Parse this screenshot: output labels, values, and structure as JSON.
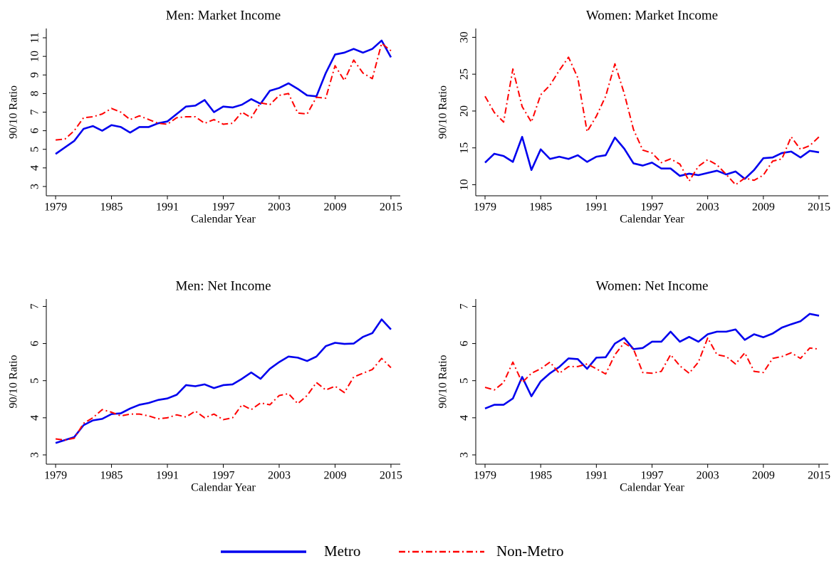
{
  "chart_data": [
    {
      "type": "line",
      "title": "Men: Market Income",
      "x_label": "Calendar Year",
      "y_label": "90/10 Ratio",
      "x": [
        1979,
        1980,
        1981,
        1982,
        1983,
        1984,
        1985,
        1986,
        1987,
        1988,
        1989,
        1990,
        1991,
        1992,
        1993,
        1994,
        1995,
        1996,
        1997,
        1998,
        1999,
        2000,
        2001,
        2002,
        2003,
        2004,
        2005,
        2006,
        2007,
        2008,
        2009,
        2010,
        2011,
        2012,
        2013,
        2014,
        2015
      ],
      "xlim": [
        1978,
        2016
      ],
      "xticks": [
        1979,
        1985,
        1991,
        1997,
        2003,
        2009,
        2015
      ],
      "ylim": [
        2.5,
        11.5
      ],
      "yticks": [
        3,
        4,
        5,
        6,
        7,
        8,
        9,
        10,
        11
      ],
      "series": [
        {
          "name": "Metro",
          "color": "#0000ee",
          "line_style": "solid",
          "values": [
            4.75,
            5.1,
            5.45,
            6.1,
            6.25,
            6.0,
            6.3,
            6.2,
            5.9,
            6.2,
            6.2,
            6.4,
            6.5,
            6.9,
            7.3,
            7.35,
            7.65,
            7.0,
            7.3,
            7.25,
            7.4,
            7.7,
            7.45,
            8.15,
            8.3,
            8.55,
            8.25,
            7.9,
            7.85,
            9.1,
            10.1,
            10.2,
            10.4,
            10.2,
            10.4,
            10.85,
            9.95
          ]
        },
        {
          "name": "Non-Metro",
          "color": "#ff0000",
          "line_style": "dash-dot",
          "values": [
            5.5,
            5.55,
            6.0,
            6.7,
            6.75,
            6.9,
            7.2,
            7.0,
            6.6,
            6.8,
            6.6,
            6.4,
            6.35,
            6.7,
            6.75,
            6.75,
            6.4,
            6.6,
            6.35,
            6.4,
            7.0,
            6.7,
            7.5,
            7.4,
            7.9,
            8.0,
            6.95,
            6.9,
            7.8,
            7.75,
            9.5,
            8.7,
            9.8,
            9.1,
            8.8,
            10.7,
            10.3
          ]
        }
      ]
    },
    {
      "type": "line",
      "title": "Women: Market Income",
      "x_label": "Calendar Year",
      "y_label": "90/10 Ratio",
      "x": [
        1979,
        1980,
        1981,
        1982,
        1983,
        1984,
        1985,
        1986,
        1987,
        1988,
        1989,
        1990,
        1991,
        1992,
        1993,
        1994,
        1995,
        1996,
        1997,
        1998,
        1999,
        2000,
        2001,
        2002,
        2003,
        2004,
        2005,
        2006,
        2007,
        2008,
        2009,
        2010,
        2011,
        2012,
        2013,
        2014,
        2015
      ],
      "xlim": [
        1978,
        2016
      ],
      "xticks": [
        1979,
        1985,
        1991,
        1997,
        2003,
        2009,
        2015
      ],
      "ylim": [
        8.5,
        31.2
      ],
      "yticks": [
        10,
        15,
        20,
        25,
        30
      ],
      "series": [
        {
          "color": "#0000ee",
          "line_style": "solid",
          "values": [
            13.0,
            14.2,
            13.9,
            13.1,
            16.5,
            12.0,
            14.8,
            13.5,
            13.8,
            13.5,
            14.0,
            13.1,
            13.8,
            14.0,
            16.4,
            14.9,
            12.9,
            12.6,
            13.0,
            12.2,
            12.2,
            11.2,
            11.5,
            11.3,
            11.6,
            11.9,
            11.4,
            11.8,
            10.8,
            12.0,
            13.6,
            13.7,
            14.3,
            14.5,
            13.7,
            14.6,
            14.4
          ]
        },
        {
          "color": "#ff0000",
          "line_style": "dash-dot",
          "values": [
            22.0,
            19.8,
            18.5,
            25.7,
            20.6,
            18.5,
            22.2,
            23.5,
            25.5,
            27.3,
            24.5,
            17.2,
            19.3,
            22.0,
            26.4,
            22.4,
            17.5,
            14.7,
            14.3,
            13.0,
            13.5,
            12.8,
            10.5,
            12.5,
            13.4,
            12.7,
            11.4,
            10.0,
            10.9,
            10.6,
            11.3,
            13.2,
            13.5,
            16.5,
            14.8,
            15.3,
            16.5
          ]
        }
      ]
    },
    {
      "type": "line",
      "title": "Men: Net Income",
      "x_label": "Calendar Year",
      "y_label": "90/10 Ratio",
      "x": [
        1979,
        1980,
        1981,
        1982,
        1983,
        1984,
        1985,
        1986,
        1987,
        1988,
        1989,
        1990,
        1991,
        1992,
        1993,
        1994,
        1995,
        1996,
        1997,
        1998,
        1999,
        2000,
        2001,
        2002,
        2003,
        2004,
        2005,
        2006,
        2007,
        2008,
        2009,
        2010,
        2011,
        2012,
        2013,
        2014,
        2015
      ],
      "xlim": [
        1978,
        2016
      ],
      "xticks": [
        1979,
        1985,
        1991,
        1997,
        2003,
        2009,
        2015
      ],
      "ylim": [
        2.75,
        7.2
      ],
      "yticks": [
        3,
        4,
        5,
        6,
        7
      ],
      "series": [
        {
          "color": "#0000ee",
          "line_style": "solid",
          "values": [
            3.32,
            3.4,
            3.48,
            3.8,
            3.93,
            3.97,
            4.1,
            4.12,
            4.25,
            4.35,
            4.4,
            4.48,
            4.52,
            4.62,
            4.88,
            4.85,
            4.9,
            4.8,
            4.88,
            4.9,
            5.05,
            5.22,
            5.05,
            5.32,
            5.5,
            5.65,
            5.62,
            5.53,
            5.65,
            5.93,
            6.02,
            5.99,
            6.0,
            6.18,
            6.28,
            6.65,
            6.38
          ]
        },
        {
          "color": "#ff0000",
          "line_style": "dash-dot",
          "values": [
            3.43,
            3.4,
            3.45,
            3.85,
            4.0,
            4.22,
            4.15,
            4.05,
            4.1,
            4.1,
            4.05,
            3.97,
            4.0,
            4.08,
            4.02,
            4.18,
            4.0,
            4.1,
            3.95,
            4.0,
            4.35,
            4.22,
            4.4,
            4.35,
            4.6,
            4.65,
            4.38,
            4.6,
            4.95,
            4.75,
            4.85,
            4.68,
            5.1,
            5.2,
            5.3,
            5.6,
            5.35
          ]
        }
      ]
    },
    {
      "type": "line",
      "title": "Women: Net Income",
      "x_label": "Calendar Year",
      "y_label": "90/10 Ratio",
      "x": [
        1979,
        1980,
        1981,
        1982,
        1983,
        1984,
        1985,
        1986,
        1987,
        1988,
        1989,
        1990,
        1991,
        1992,
        1993,
        1994,
        1995,
        1996,
        1997,
        1998,
        1999,
        2000,
        2001,
        2002,
        2003,
        2004,
        2005,
        2006,
        2007,
        2008,
        2009,
        2010,
        2011,
        2012,
        2013,
        2014,
        2015
      ],
      "xlim": [
        1978,
        2016
      ],
      "xticks": [
        1979,
        1985,
        1991,
        1997,
        2003,
        2009,
        2015
      ],
      "ylim": [
        2.75,
        7.2
      ],
      "yticks": [
        3,
        4,
        5,
        6,
        7
      ],
      "series": [
        {
          "color": "#0000ee",
          "line_style": "solid",
          "values": [
            4.25,
            4.35,
            4.35,
            4.52,
            5.1,
            4.58,
            4.98,
            5.2,
            5.37,
            5.6,
            5.58,
            5.32,
            5.62,
            5.63,
            6.0,
            6.15,
            5.85,
            5.88,
            6.05,
            6.05,
            6.32,
            6.05,
            6.18,
            6.05,
            6.25,
            6.32,
            6.32,
            6.38,
            6.1,
            6.25,
            6.17,
            6.27,
            6.43,
            6.52,
            6.6,
            6.8,
            6.75
          ]
        },
        {
          "color": "#ff0000",
          "line_style": "dash-dot",
          "values": [
            4.82,
            4.75,
            4.95,
            5.5,
            4.95,
            5.2,
            5.32,
            5.5,
            5.2,
            5.38,
            5.38,
            5.45,
            5.32,
            5.18,
            5.7,
            6.02,
            5.85,
            5.22,
            5.2,
            5.25,
            5.7,
            5.4,
            5.2,
            5.5,
            6.15,
            5.7,
            5.65,
            5.45,
            5.75,
            5.25,
            5.22,
            5.6,
            5.65,
            5.75,
            5.6,
            5.88,
            5.85
          ]
        }
      ]
    }
  ]
}
